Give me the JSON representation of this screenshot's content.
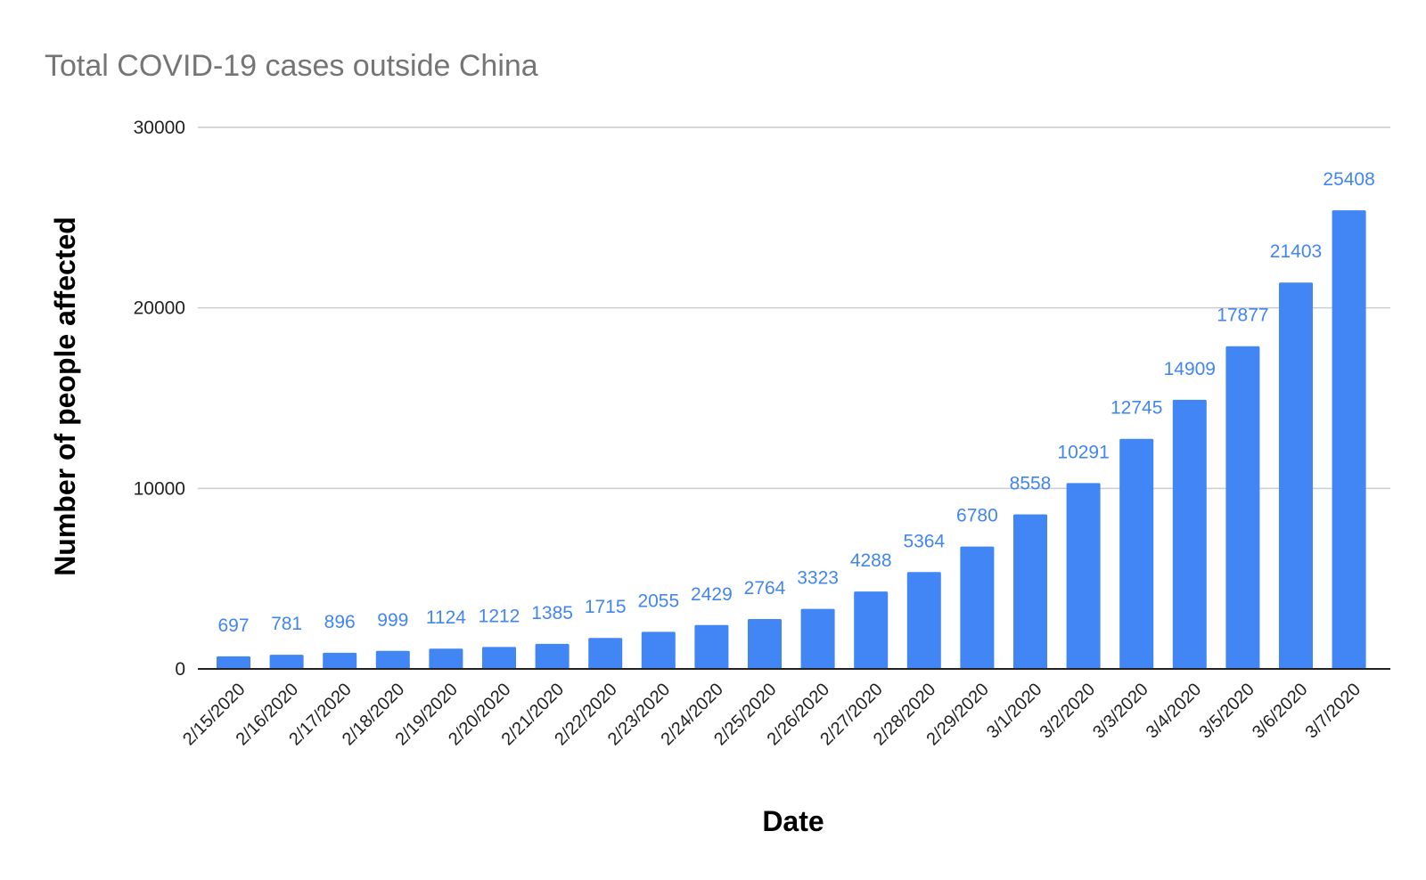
{
  "chart_data": {
    "type": "bar",
    "title": "Total COVID-19 cases outside China",
    "xlabel": "Date",
    "ylabel": "Number of people affected",
    "categories": [
      "2/15/2020",
      "2/16/2020",
      "2/17/2020",
      "2/18/2020",
      "2/19/2020",
      "2/20/2020",
      "2/21/2020",
      "2/22/2020",
      "2/23/2020",
      "2/24/2020",
      "2/25/2020",
      "2/26/2020",
      "2/27/2020",
      "2/28/2020",
      "2/29/2020",
      "3/1/2020",
      "3/2/2020",
      "3/3/2020",
      "3/4/2020",
      "3/5/2020",
      "3/6/2020",
      "3/7/2020"
    ],
    "values": [
      697,
      781,
      896,
      999,
      1124,
      1212,
      1385,
      1715,
      2055,
      2429,
      2764,
      3323,
      4288,
      5364,
      6780,
      8558,
      10291,
      12745,
      14909,
      17877,
      21403,
      25408
    ],
    "data_labels": [
      "697",
      "781",
      "896",
      "999",
      "1124",
      "1212",
      "1385",
      "1715",
      "2055",
      "2429",
      "2764",
      "3323",
      "4288",
      "5364",
      "6780",
      "8558",
      "10291",
      "12745",
      "14909",
      "17877",
      "21403",
      "25408"
    ],
    "ylim": [
      0,
      30000
    ],
    "yticks": [
      "0",
      "10000",
      "20000",
      "30000"
    ],
    "grid": true,
    "legend": "none",
    "bar_color": "#4285f4",
    "label_color": "#4285f4"
  }
}
